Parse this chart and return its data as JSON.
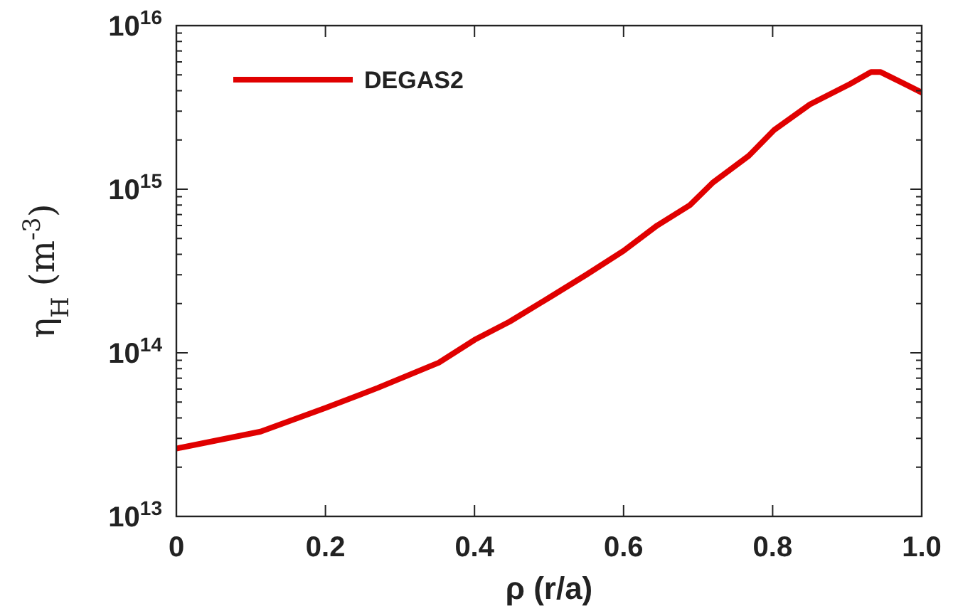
{
  "chart_data": {
    "type": "line",
    "xlabel": "ρ (r/a)",
    "ylabel": "η$_{H}$ (m$^{-3}$)",
    "log": "y",
    "legend": "top left",
    "grid": false,
    "xlim": [
      0,
      1
    ],
    "xticks": [
      0,
      0.2,
      0.4,
      0.6,
      0.8,
      {
        "value": 1,
        "label": "1.0"
      }
    ],
    "ylim": [
      10000000000000.0,
      1e+16
    ],
    "yticks": [
      {
        "value": 10000000000000.0,
        "label": "10$^{13}$"
      },
      {
        "value": 100000000000000.0,
        "label": "10$^{14}$"
      },
      {
        "value": 1000000000000000.0,
        "label": "10$^{15}$"
      },
      {
        "value": 1e+16,
        "label": "10$^{16}$"
      }
    ],
    "x": [
      0,
      0.113,
      0.2,
      0.27,
      0.352,
      0.4,
      0.447,
      0.502,
      0.55,
      0.6,
      0.645,
      0.689,
      0.72,
      0.768,
      0.802,
      0.85,
      0.904,
      0.932,
      0.945,
      1.0
    ],
    "series": [
      {
        "name": "DEGAS2",
        "color": "#e00000",
        "values": [
          26000000000000.0,
          33000000000000.0,
          46000000000000.0,
          61000000000000.0,
          87000000000000.0,
          120000000000000.0,
          155000000000000.0,
          220000000000000.0,
          300000000000000.0,
          420000000000000.0,
          600000000000000.0,
          800000000000000.0,
          1100000000000000.0,
          1600000000000000.0,
          2300000000000000.0,
          3300000000000000.0,
          4400000000000000.0,
          5200000000000000.0,
          5200000000000000.0,
          3900000000000000.0
        ]
      }
    ]
  }
}
